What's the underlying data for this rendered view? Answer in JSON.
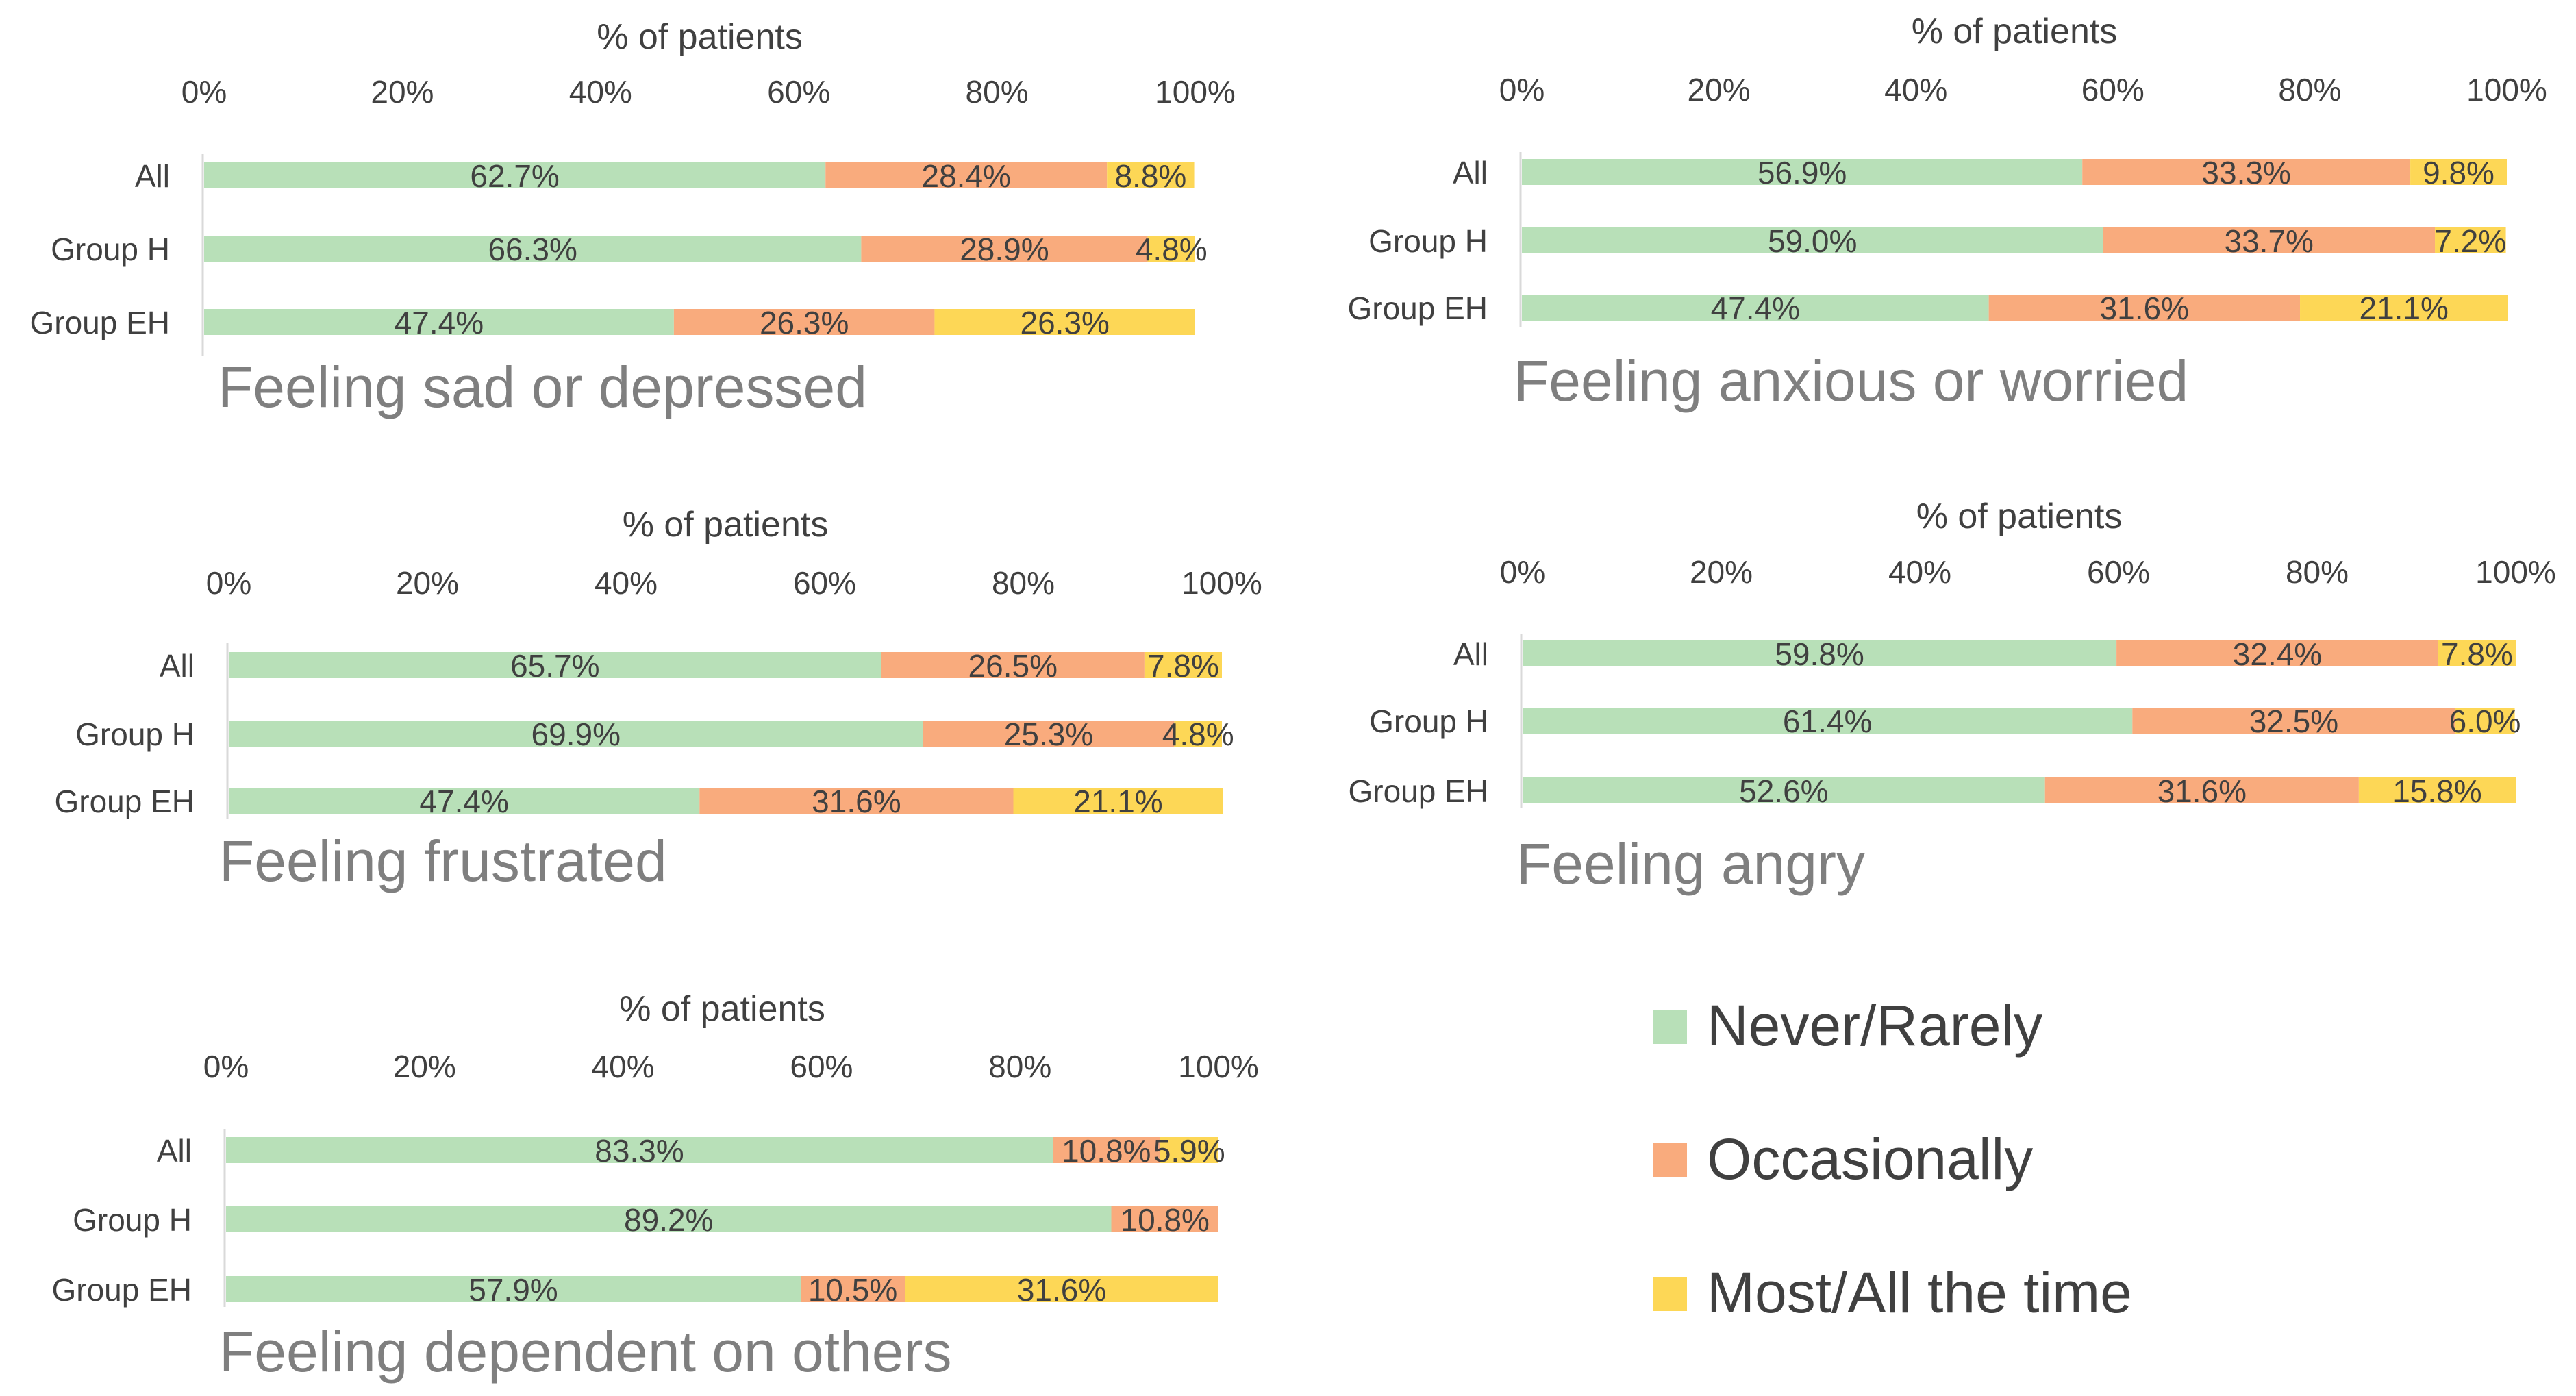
{
  "chart_data": [
    {
      "type": "bar",
      "stacked": true,
      "orientation": "horizontal",
      "title": "Feeling sad or depressed",
      "xlabel": "% of patients",
      "xlim": [
        0,
        100
      ],
      "x_ticks": [
        "0%",
        "20%",
        "40%",
        "60%",
        "80%",
        "100%"
      ],
      "categories": [
        "All",
        "Group H",
        "Group EH"
      ],
      "series": [
        {
          "name": "Never/Rarely",
          "values": [
            62.7,
            66.3,
            47.4
          ],
          "labels": [
            "62.7%",
            "66.3%",
            "47.4%"
          ]
        },
        {
          "name": "Occasionally",
          "values": [
            28.4,
            28.9,
            26.3
          ],
          "labels": [
            "28.4%",
            "28.9%",
            "26.3%"
          ]
        },
        {
          "name": "Most/All the time",
          "values": [
            8.8,
            4.8,
            26.3
          ],
          "labels": [
            "8.8%",
            "4.8%",
            "26.3%"
          ]
        }
      ]
    },
    {
      "type": "bar",
      "stacked": true,
      "orientation": "horizontal",
      "title": "Feeling anxious or worried",
      "xlabel": "% of patients",
      "xlim": [
        0,
        100
      ],
      "x_ticks": [
        "0%",
        "20%",
        "40%",
        "60%",
        "80%",
        "100%"
      ],
      "categories": [
        "All",
        "Group H",
        "Group EH"
      ],
      "series": [
        {
          "name": "Never/Rarely",
          "values": [
            56.9,
            59.0,
            47.4
          ],
          "labels": [
            "56.9%",
            "59.0%",
            "47.4%"
          ]
        },
        {
          "name": "Occasionally",
          "values": [
            33.3,
            33.7,
            31.6
          ],
          "labels": [
            "33.3%",
            "33.7%",
            "31.6%"
          ]
        },
        {
          "name": "Most/All the time",
          "values": [
            9.8,
            7.2,
            21.1
          ],
          "labels": [
            "9.8%",
            "7.2%",
            "21.1%"
          ]
        }
      ]
    },
    {
      "type": "bar",
      "stacked": true,
      "orientation": "horizontal",
      "title": "Feeling frustrated",
      "xlabel": "% of patients",
      "xlim": [
        0,
        100
      ],
      "x_ticks": [
        "0%",
        "20%",
        "40%",
        "60%",
        "80%",
        "100%"
      ],
      "categories": [
        "All",
        "Group H",
        "Group EH"
      ],
      "series": [
        {
          "name": "Never/Rarely",
          "values": [
            65.7,
            69.9,
            47.4
          ],
          "labels": [
            "65.7%",
            "69.9%",
            "47.4%"
          ]
        },
        {
          "name": "Occasionally",
          "values": [
            26.5,
            25.3,
            31.6
          ],
          "labels": [
            "26.5%",
            "25.3%",
            "31.6%"
          ]
        },
        {
          "name": "Most/All the time",
          "values": [
            7.8,
            4.8,
            21.1
          ],
          "labels": [
            "7.8%",
            "4.8%",
            "21.1%"
          ]
        }
      ]
    },
    {
      "type": "bar",
      "stacked": true,
      "orientation": "horizontal",
      "title": "Feeling angry",
      "xlabel": "% of patients",
      "xlim": [
        0,
        100
      ],
      "x_ticks": [
        "0%",
        "20%",
        "40%",
        "60%",
        "80%",
        "100%"
      ],
      "categories": [
        "All",
        "Group H",
        "Group EH"
      ],
      "series": [
        {
          "name": "Never/Rarely",
          "values": [
            59.8,
            61.4,
            52.6
          ],
          "labels": [
            "59.8%",
            "61.4%",
            "52.6%"
          ]
        },
        {
          "name": "Occasionally",
          "values": [
            32.4,
            32.5,
            31.6
          ],
          "labels": [
            "32.4%",
            "32.5%",
            "31.6%"
          ]
        },
        {
          "name": "Most/All the time",
          "values": [
            7.8,
            6.0,
            15.8
          ],
          "labels": [
            "7.8%",
            "6.0%",
            "15.8%"
          ]
        }
      ]
    },
    {
      "type": "bar",
      "stacked": true,
      "orientation": "horizontal",
      "title": "Feeling dependent  on others",
      "xlabel": "% of patients",
      "xlim": [
        0,
        100
      ],
      "x_ticks": [
        "0%",
        "20%",
        "40%",
        "60%",
        "80%",
        "100%"
      ],
      "categories": [
        "All",
        "Group H",
        "Group EH"
      ],
      "series": [
        {
          "name": "Never/Rarely",
          "values": [
            83.3,
            89.2,
            57.9
          ],
          "labels": [
            "83.3%",
            "89.2%",
            "57.9%"
          ]
        },
        {
          "name": "Occasionally",
          "values": [
            10.8,
            10.8,
            10.5
          ],
          "labels": [
            "10.8%",
            "10.8%",
            "10.5%"
          ]
        },
        {
          "name": "Most/All the time",
          "values": [
            5.9,
            0,
            31.6
          ],
          "labels": [
            "5.9%",
            "",
            "31.6%"
          ]
        }
      ]
    }
  ],
  "legend": [
    {
      "label": "Never/Rarely",
      "color": "#b8e0b8"
    },
    {
      "label": "Occasionally",
      "color": "#f9ab7d"
    },
    {
      "label": "Most/All the time",
      "color": "#fdd756"
    }
  ],
  "colors": {
    "never": "#b8e0b8",
    "occasionally": "#f9ab7d",
    "most": "#fdd756",
    "text": "#404040",
    "title": "#7f7f7f",
    "axis": "#d9d9d9"
  }
}
